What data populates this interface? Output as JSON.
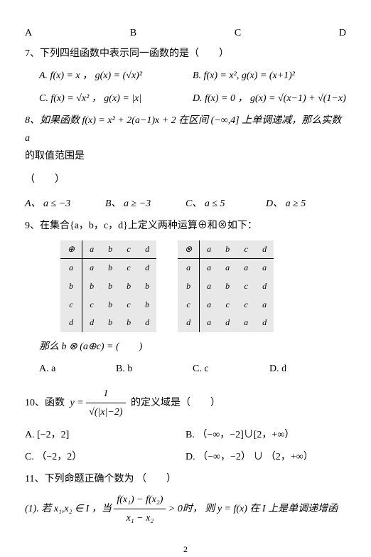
{
  "q6": {
    "A": "A",
    "B": "B",
    "C": "C",
    "D": "D"
  },
  "q7": {
    "stem": "7、下列四组函数中表示同一函数的是（　　）",
    "A": "A. f(x) = x ，  g(x) = (√x)²",
    "B": "B. f(x) = x², g(x) = (x+1)²",
    "C": "C. f(x) = √x² ，  g(x) = |x|",
    "D": "D. f(x) = 0 ，  g(x) = √(x−1) + √(1−x)"
  },
  "q8": {
    "stem1": "8、如果函数 f(x) = x² + 2(a−1)x + 2 在区间 (−∞,4] 上单调递减，那么实数 a",
    "stem2": "的取值范围是",
    "paren": "（　　）",
    "A": "A、 a ≤ −3",
    "B": "B、 a ≥ −3",
    "C": "C、 a ≤ 5",
    "D": "D、 a ≥ 5"
  },
  "q9": {
    "stem": "9、在集合{a，b，c，d}上定义两种运算⊕和⊗如下：",
    "t1": {
      "op": "⊕",
      "head": [
        "a",
        "b",
        "c",
        "d"
      ],
      "rows": [
        [
          "a",
          "a",
          "b",
          "c",
          "d"
        ],
        [
          "b",
          "b",
          "b",
          "b",
          "b"
        ],
        [
          "c",
          "c",
          "b",
          "c",
          "b"
        ],
        [
          "d",
          "d",
          "b",
          "b",
          "d"
        ]
      ]
    },
    "t2": {
      "op": "⊗",
      "head": [
        "a",
        "b",
        "c",
        "d"
      ],
      "rows": [
        [
          "a",
          "a",
          "a",
          "a",
          "a"
        ],
        [
          "b",
          "a",
          "b",
          "c",
          "d"
        ],
        [
          "c",
          "a",
          "c",
          "c",
          "a"
        ],
        [
          "d",
          "a",
          "d",
          "a",
          "d"
        ]
      ]
    },
    "ask": "那么 b ⊗  (a⊕c) = (　　)",
    "A": "A. a",
    "B": "B. b",
    "C": "C. c",
    "D": "D. d"
  },
  "q10": {
    "pre": "10、函数",
    "post": "的定义域是（　　）",
    "formula": {
      "lhs": "y =",
      "num": "1",
      "den": "√(|x|−2)"
    },
    "A": "A.  [−2，2]",
    "B": "B.  （−∞，−2]∪[2，+∞）",
    "C": "C.  （−2，2）",
    "D": "D.  （−∞，−2） ∪ （2，+∞）"
  },
  "q11": {
    "stem": "11、下列命题正确个数为 （　　）",
    "p1a": "(1). 若 x₁,x₂ ∈ I ，当",
    "p1b": "> 0时， 则 y = f(x) 在 I 上是单调递增函",
    "frac": {
      "num": "f(x₁) − f(x₂)",
      "den": "x₁ − x₂"
    }
  },
  "page": "2"
}
